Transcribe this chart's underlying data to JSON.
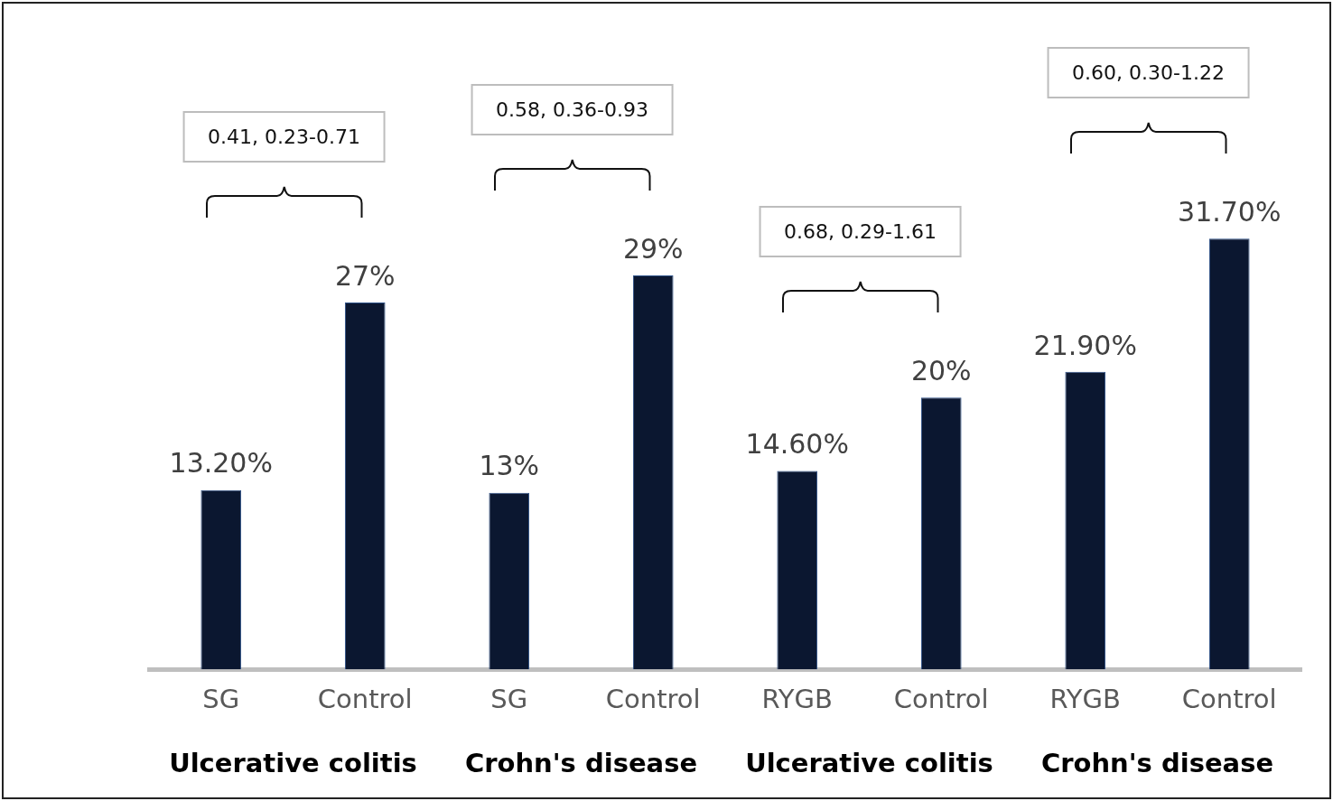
{
  "chart_data": {
    "type": "bar",
    "categories": [
      "SG",
      "Control",
      "SG",
      "Control",
      "RYGB",
      "Control",
      "RYGB",
      "Control"
    ],
    "values": [
      13.2,
      27,
      13,
      29,
      14.6,
      20,
      21.9,
      31.7
    ],
    "value_labels": [
      "13.20%",
      "27%",
      "13%",
      "29%",
      "14.60%",
      "20%",
      "21.90%",
      "31.70%"
    ],
    "color": "#0b1730",
    "annotations": [
      "0.41, 0.23-0.71",
      "0.58, 0.36-0.93",
      "0.68, 0.29-1.61",
      "0.60, 0.30-1.22",
      "Ulcerative colitis",
      "Crohn's disease",
      "Ulcerative colitis",
      "Crohn's disease"
    ],
    "grid": false,
    "legend": false,
    "tick_labels": "x"
  }
}
